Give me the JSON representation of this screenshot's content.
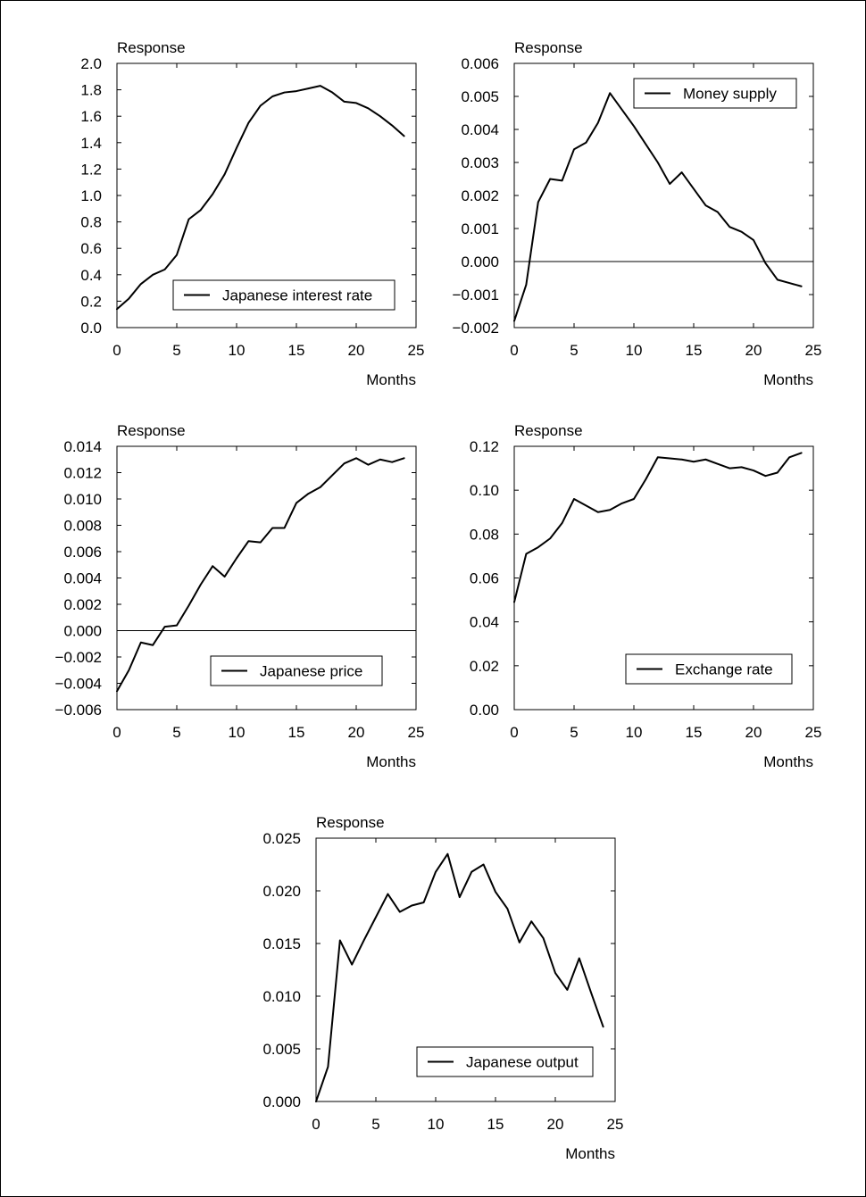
{
  "chart_data": [
    {
      "type": "line",
      "ylabel": "Response",
      "xlabel": "Months",
      "xlim": [
        0,
        25
      ],
      "ylim": [
        0,
        2.0
      ],
      "xticks": [
        "0",
        "5",
        "10",
        "15",
        "20",
        "25"
      ],
      "yticks": [
        "0.0",
        "0.2",
        "0.4",
        "0.6",
        "0.8",
        "1.0",
        "1.2",
        "1.4",
        "1.6",
        "1.8",
        "2.0"
      ],
      "zero_line": false,
      "legend_position": "bottom-right",
      "series": [
        {
          "name": "Japanese interest rate",
          "x": [
            0,
            1,
            2,
            3,
            4,
            5,
            6,
            7,
            8,
            9,
            10,
            11,
            12,
            13,
            14,
            15,
            16,
            17,
            18,
            19,
            20,
            21,
            22,
            23,
            24
          ],
          "values": [
            0.14,
            0.22,
            0.33,
            0.4,
            0.44,
            0.55,
            0.82,
            0.89,
            1.01,
            1.16,
            1.36,
            1.55,
            1.68,
            1.75,
            1.78,
            1.79,
            1.81,
            1.83,
            1.78,
            1.71,
            1.7,
            1.66,
            1.6,
            1.53,
            1.45
          ]
        }
      ]
    },
    {
      "type": "line",
      "ylabel": "Response",
      "xlabel": "Months",
      "xlim": [
        0,
        25
      ],
      "ylim": [
        -0.002,
        0.006
      ],
      "xticks": [
        "0",
        "5",
        "10",
        "15",
        "20",
        "25"
      ],
      "yticks": [
        "−0.002",
        "−0.001",
        "0.000",
        "0.001",
        "0.002",
        "0.003",
        "0.004",
        "0.005",
        "0.006"
      ],
      "zero_line": true,
      "legend_position": "top-right",
      "series": [
        {
          "name": "Money supply",
          "x": [
            0,
            1,
            2,
            3,
            4,
            5,
            6,
            7,
            8,
            9,
            10,
            11,
            12,
            13,
            14,
            15,
            16,
            17,
            18,
            19,
            20,
            21,
            22,
            23,
            24
          ],
          "values": [
            -0.0018,
            -0.0007,
            0.0018,
            0.0025,
            0.00245,
            0.0034,
            0.0036,
            0.0042,
            0.0051,
            0.0046,
            0.0041,
            0.00355,
            0.003,
            0.00235,
            0.0027,
            0.0022,
            0.0017,
            0.0015,
            0.00105,
            0.0009,
            0.00065,
            -5e-05,
            -0.00055,
            -0.00065,
            -0.00075
          ]
        }
      ]
    },
    {
      "type": "line",
      "ylabel": "Response",
      "xlabel": "Months",
      "xlim": [
        0,
        25
      ],
      "ylim": [
        -0.006,
        0.014
      ],
      "xticks": [
        "0",
        "5",
        "10",
        "15",
        "20",
        "25"
      ],
      "yticks": [
        "−0.006",
        "−0.004",
        "−0.002",
        "0.000",
        "0.002",
        "0.004",
        "0.006",
        "0.008",
        "0.010",
        "0.012",
        "0.014"
      ],
      "zero_line": true,
      "legend_position": "bottom-right",
      "series": [
        {
          "name": "Japanese price",
          "x": [
            0,
            1,
            2,
            3,
            4,
            5,
            6,
            7,
            8,
            9,
            10,
            11,
            12,
            13,
            14,
            15,
            16,
            17,
            18,
            19,
            20,
            21,
            22,
            23,
            24
          ],
          "values": [
            -0.0046,
            -0.003,
            -0.0009,
            -0.0011,
            0.0003,
            0.0004,
            0.0019,
            0.0035,
            0.0049,
            0.0041,
            0.0055,
            0.0068,
            0.0067,
            0.0078,
            0.0078,
            0.0097,
            0.0104,
            0.0109,
            0.0118,
            0.0127,
            0.0131,
            0.0126,
            0.013,
            0.0128,
            0.0131
          ]
        }
      ]
    },
    {
      "type": "line",
      "ylabel": "Response",
      "xlabel": "Months",
      "xlim": [
        0,
        25
      ],
      "ylim": [
        0,
        0.12
      ],
      "xticks": [
        "0",
        "5",
        "10",
        "15",
        "20",
        "25"
      ],
      "yticks": [
        "0.00",
        "0.02",
        "0.04",
        "0.06",
        "0.08",
        "0.10",
        "0.12"
      ],
      "zero_line": false,
      "legend_position": "bottom-right",
      "series": [
        {
          "name": "Exchange rate",
          "x": [
            0,
            1,
            2,
            3,
            4,
            5,
            6,
            7,
            8,
            9,
            10,
            11,
            12,
            13,
            14,
            15,
            16,
            17,
            18,
            19,
            20,
            21,
            22,
            23,
            24
          ],
          "values": [
            0.049,
            0.071,
            0.074,
            0.078,
            0.085,
            0.096,
            0.093,
            0.09,
            0.091,
            0.094,
            0.096,
            0.105,
            0.115,
            0.1145,
            0.114,
            0.113,
            0.114,
            0.112,
            0.11,
            0.1105,
            0.109,
            0.1065,
            0.108,
            0.115,
            0.117
          ]
        }
      ]
    },
    {
      "type": "line",
      "ylabel": "Response",
      "xlabel": "Months",
      "xlim": [
        0,
        25
      ],
      "ylim": [
        0,
        0.025
      ],
      "xticks": [
        "0",
        "5",
        "10",
        "15",
        "20",
        "25"
      ],
      "yticks": [
        "0.000",
        "0.005",
        "0.010",
        "0.015",
        "0.020",
        "0.025"
      ],
      "zero_line": false,
      "legend_position": "bottom-right",
      "series": [
        {
          "name": "Japanese output",
          "x": [
            0,
            1,
            2,
            3,
            4,
            5,
            6,
            7,
            8,
            9,
            10,
            11,
            12,
            13,
            14,
            15,
            16,
            17,
            18,
            19,
            20,
            21,
            22,
            23,
            24
          ],
          "values": [
            0.0,
            0.0033,
            0.0153,
            0.013,
            0.0153,
            0.0175,
            0.0197,
            0.018,
            0.0186,
            0.0189,
            0.0218,
            0.0235,
            0.0194,
            0.0218,
            0.0225,
            0.0199,
            0.0183,
            0.0151,
            0.0171,
            0.0155,
            0.0122,
            0.0106,
            0.0136,
            0.0103,
            0.0071
          ]
        }
      ]
    }
  ]
}
